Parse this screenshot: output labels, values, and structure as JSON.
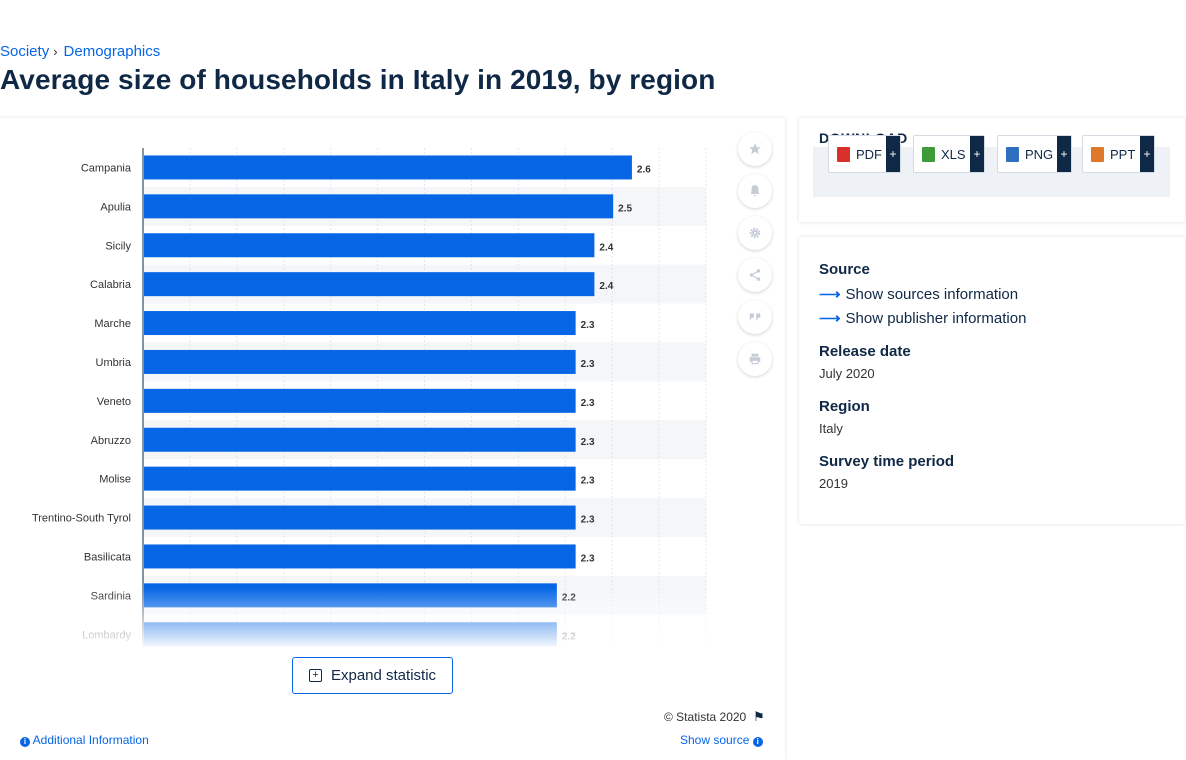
{
  "breadcrumb": {
    "items": [
      "Society",
      "Demographics"
    ]
  },
  "page": {
    "title": "Average size of households in Italy in 2019, by region"
  },
  "chart_data": {
    "type": "bar",
    "orientation": "horizontal",
    "categories": [
      "Campania",
      "Apulia",
      "Sicily",
      "Calabria",
      "Marche",
      "Umbria",
      "Veneto",
      "Abruzzo",
      "Molise",
      "Trentino-South Tyrol",
      "Basilicata",
      "Sardinia",
      "Lombardy"
    ],
    "values": [
      2.6,
      2.5,
      2.4,
      2.4,
      2.3,
      2.3,
      2.3,
      2.3,
      2.3,
      2.3,
      2.3,
      2.2,
      2.2
    ],
    "value_labels": [
      "2.6",
      "2.5",
      "2.4",
      "2.4",
      "2.3",
      "2.3",
      "2.3",
      "2.3",
      "2.3",
      "2.3",
      "2.3",
      "2.2",
      "2.2"
    ],
    "xlim": [
      0,
      3
    ],
    "grid": true,
    "bar_color": "#0666e5"
  },
  "toolbar": {
    "icons": [
      "star-icon",
      "bell-icon",
      "gear-icon",
      "share-icon",
      "quote-icon",
      "print-icon"
    ]
  },
  "chart_footer": {
    "expand_label": "Expand statistic",
    "copyright": "© Statista 2020",
    "additional_info": "Additional Information",
    "show_source": "Show source"
  },
  "download": {
    "title": "DOWNLOAD",
    "buttons": [
      {
        "label": "PDF",
        "color": "#d9302a"
      },
      {
        "label": "XLS",
        "color": "#3f9b3a"
      },
      {
        "label": "PNG",
        "color": "#2f6fbf"
      },
      {
        "label": "PPT",
        "color": "#e0782a"
      }
    ],
    "plus": "+"
  },
  "info": {
    "source_heading": "Source",
    "show_sources": "Show sources information",
    "show_publisher": "Show publisher information",
    "release_heading": "Release date",
    "release_value": "July 2020",
    "region_heading": "Region",
    "region_value": "Italy",
    "period_heading": "Survey time period",
    "period_value": "2019"
  }
}
